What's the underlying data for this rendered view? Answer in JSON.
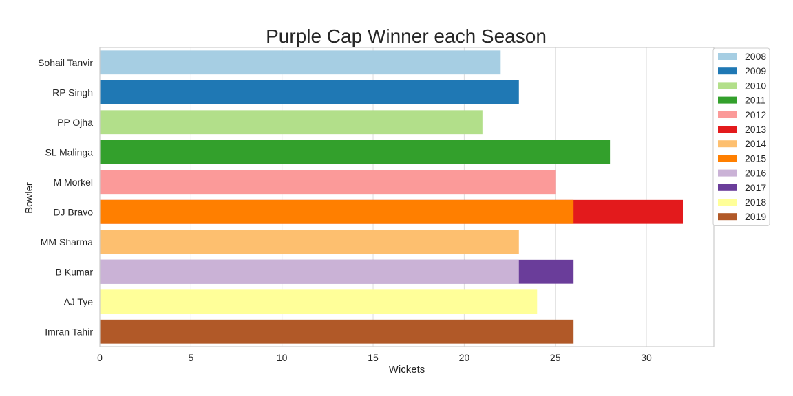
{
  "chart_data": {
    "type": "bar",
    "orientation": "horizontal",
    "title": "Purple Cap Winner each Season",
    "xlabel": "Wickets",
    "ylabel": "Bowler",
    "xlim": [
      0,
      33.7
    ],
    "xticks": [
      0,
      5,
      10,
      15,
      20,
      25,
      30
    ],
    "grid": "vertical",
    "legend_position": "right",
    "categories": [
      "Sohail Tanvir",
      "RP Singh",
      "PP Ojha",
      "SL Malinga",
      "M Morkel",
      "DJ Bravo",
      "MM Sharma",
      "B Kumar",
      "AJ Tye",
      "Imran Tahir"
    ],
    "series": [
      {
        "name": "2008",
        "color": "#a6cee3",
        "values": [
          22,
          null,
          null,
          null,
          null,
          null,
          null,
          null,
          null,
          null
        ]
      },
      {
        "name": "2009",
        "color": "#1f78b4",
        "values": [
          null,
          23,
          null,
          null,
          null,
          null,
          null,
          null,
          null,
          null
        ]
      },
      {
        "name": "2010",
        "color": "#b2df8a",
        "values": [
          null,
          null,
          21,
          null,
          null,
          null,
          null,
          null,
          null,
          null
        ]
      },
      {
        "name": "2011",
        "color": "#33a02c",
        "values": [
          null,
          null,
          null,
          28,
          null,
          null,
          null,
          null,
          null,
          null
        ]
      },
      {
        "name": "2012",
        "color": "#fb9a99",
        "values": [
          null,
          null,
          null,
          null,
          25,
          null,
          null,
          null,
          null,
          null
        ]
      },
      {
        "name": "2013",
        "color": "#e31a1c",
        "values": [
          null,
          null,
          null,
          null,
          null,
          32,
          null,
          null,
          null,
          null
        ]
      },
      {
        "name": "2014",
        "color": "#fdbf6f",
        "values": [
          null,
          null,
          null,
          null,
          null,
          null,
          23,
          null,
          null,
          null
        ]
      },
      {
        "name": "2015",
        "color": "#ff7f00",
        "values": [
          null,
          null,
          null,
          null,
          null,
          26,
          null,
          null,
          null,
          null
        ]
      },
      {
        "name": "2016",
        "color": "#cab2d6",
        "values": [
          null,
          null,
          null,
          null,
          null,
          null,
          null,
          23,
          null,
          null
        ]
      },
      {
        "name": "2017",
        "color": "#6a3d9a",
        "values": [
          null,
          null,
          null,
          null,
          null,
          null,
          null,
          26,
          null,
          null
        ]
      },
      {
        "name": "2018",
        "color": "#ffff99",
        "values": [
          null,
          null,
          null,
          null,
          null,
          null,
          null,
          null,
          24,
          null
        ]
      },
      {
        "name": "2019",
        "color": "#b15928",
        "values": [
          null,
          null,
          null,
          null,
          null,
          null,
          null,
          null,
          null,
          26
        ]
      }
    ]
  }
}
